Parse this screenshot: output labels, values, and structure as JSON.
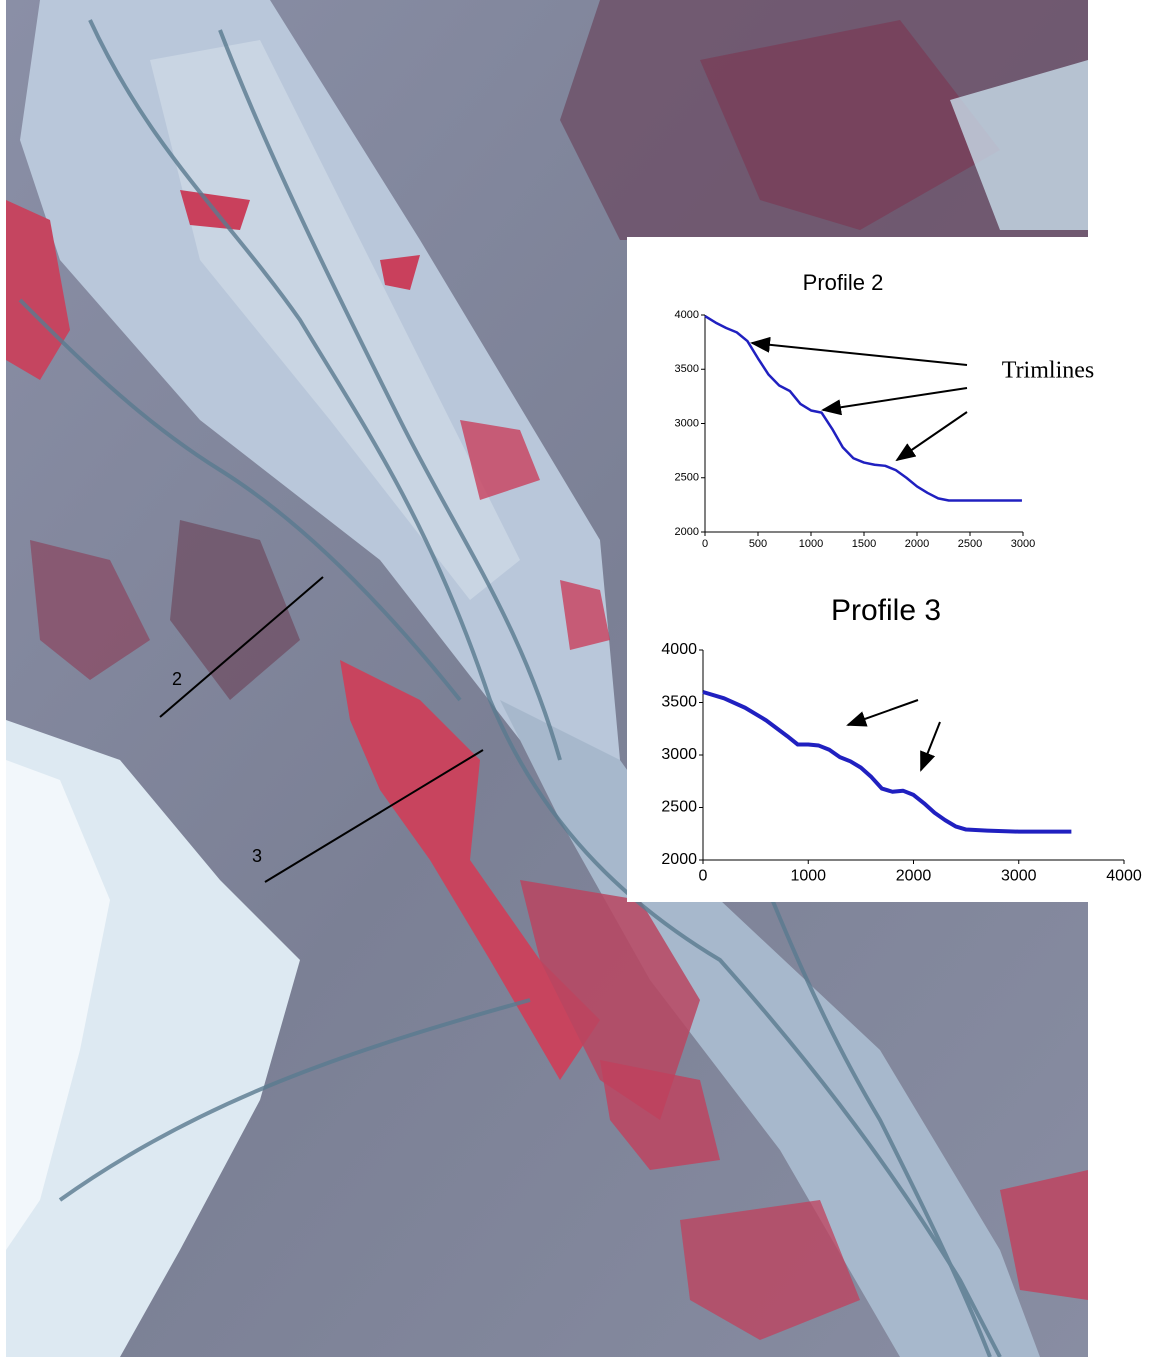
{
  "map_labels": {
    "profile_2": "2",
    "profile_3": "3"
  },
  "annotation": "Trimlines",
  "chart_data": [
    {
      "type": "line",
      "title": "Profile 2",
      "x": [
        0,
        100,
        200,
        300,
        400,
        500,
        600,
        700,
        800,
        900,
        1000,
        1100,
        1200,
        1300,
        1400,
        1500,
        1600,
        1700,
        1800,
        1900,
        2000,
        2100,
        2200,
        2300,
        2400,
        2600,
        2800,
        2990
      ],
      "values": [
        3990,
        3930,
        3880,
        3840,
        3760,
        3600,
        3450,
        3350,
        3300,
        3180,
        3120,
        3100,
        2950,
        2780,
        2680,
        2640,
        2620,
        2610,
        2570,
        2500,
        2420,
        2360,
        2310,
        2290,
        2290,
        2290,
        2290,
        2290
      ],
      "color": "#2020c0",
      "xlim": [
        0,
        3000
      ],
      "xticks": [
        0,
        500,
        1000,
        1500,
        2000,
        2500,
        3000
      ],
      "ylim": [
        2000,
        4000
      ],
      "yticks": [
        2000,
        2500,
        3000,
        3500,
        4000
      ]
    },
    {
      "type": "line",
      "title": "Profile 3",
      "x": [
        0,
        200,
        400,
        600,
        800,
        900,
        1000,
        1100,
        1200,
        1300,
        1400,
        1500,
        1600,
        1700,
        1800,
        1900,
        2000,
        2100,
        2200,
        2300,
        2400,
        2500,
        2700,
        3000,
        3200,
        3500
      ],
      "values": [
        3600,
        3540,
        3450,
        3330,
        3180,
        3100,
        3100,
        3090,
        3050,
        2980,
        2940,
        2880,
        2790,
        2680,
        2650,
        2660,
        2620,
        2540,
        2450,
        2380,
        2320,
        2290,
        2280,
        2270,
        2270,
        2270
      ],
      "color": "#2020c0",
      "xlim": [
        0,
        4000
      ],
      "xticks": [
        0,
        1000,
        2000,
        3000,
        4000
      ],
      "ylim": [
        2000,
        4000
      ],
      "yticks": [
        2000,
        2500,
        3000,
        3500,
        4000
      ]
    }
  ]
}
